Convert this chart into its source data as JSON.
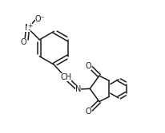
{
  "background_color": "#ffffff",
  "line_color": "#1a1a1a",
  "line_width": 1.1,
  "figure_width": 2.06,
  "figure_height": 1.67,
  "dpi": 100,
  "xlim": [
    -0.05,
    1.1
  ],
  "ylim": [
    -0.05,
    1.02
  ]
}
